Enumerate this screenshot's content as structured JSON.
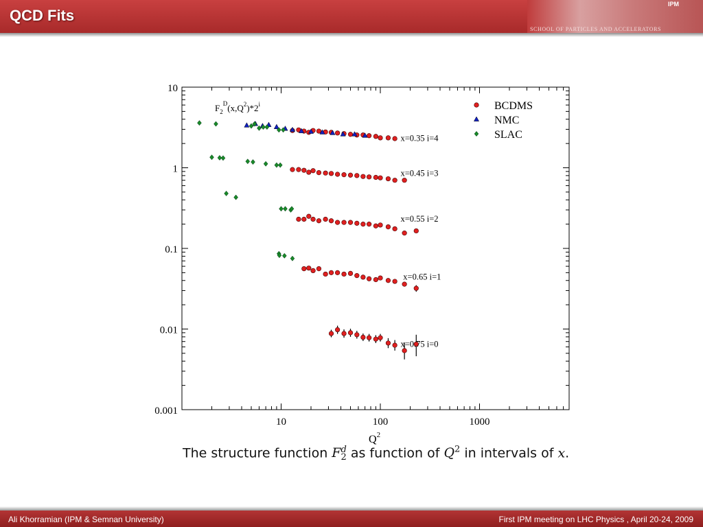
{
  "slide": {
    "title": "QCD Fits",
    "banner_text": "SCHOOL OF PARTICLES AND ACCELERATORS",
    "banner_logo": "IPM",
    "footer_left": "Ali Khorramian (IPM & Semnan University)",
    "footer_right": "First IPM meeting on LHC Physics , April 20-24, 2009"
  },
  "caption": {
    "prefix": "The structure function ",
    "symbol": "F",
    "sup": "d",
    "sub": "2",
    "middle": " as function of ",
    "q": "Q",
    "qsup": "2",
    "suffix": " in intervals of ",
    "x": "x",
    "end": "."
  },
  "chart_data": {
    "type": "scatter",
    "xscale": "log",
    "yscale": "log",
    "xlim": [
      1,
      8000
    ],
    "ylim": [
      0.001,
      10
    ],
    "xlabel": "Q",
    "xlabel_sup": "2",
    "ylabel": "F2D(x,Q2)*2i",
    "ylabel_parts": {
      "base": "F",
      "sub": "2",
      "sup": "D",
      "mid1": "(x,Q",
      "sup2": "2",
      "mid2": ")*2",
      "sup3": "i"
    },
    "xticks": [
      10,
      100,
      1000
    ],
    "xtick_labels": [
      "10",
      "100",
      "1000"
    ],
    "yticks": [
      0.001,
      0.01,
      0.1,
      1,
      10
    ],
    "ytick_labels": [
      "0.001",
      "0.01",
      "0.1",
      "1",
      "10"
    ],
    "legend_position": "top-right",
    "legend": [
      {
        "name": "BCDMS",
        "marker": "circle",
        "color": "#e02020"
      },
      {
        "name": "NMC",
        "marker": "triangle",
        "color": "#1020c0"
      },
      {
        "name": "SLAC",
        "marker": "diamond",
        "color": "#1a8a2a"
      }
    ],
    "annotations": [
      {
        "text": "x=0.35 i=4",
        "x": 160,
        "y": 2.15
      },
      {
        "text": "x=0.45 i=3",
        "x": 160,
        "y": 0.79
      },
      {
        "text": "x=0.55 i=2",
        "x": 160,
        "y": 0.215
      },
      {
        "text": "x=0.65 i=1",
        "x": 170,
        "y": 0.041
      },
      {
        "text": "x=0.75 i=0",
        "x": 160,
        "y": 0.006
      }
    ],
    "series": [
      {
        "name": "BCDMS",
        "marker": "circle",
        "color": "#e02020",
        "points": [
          [
            13,
            2.9
          ],
          [
            15,
            2.95
          ],
          [
            17,
            2.85
          ],
          [
            19,
            2.75
          ],
          [
            21,
            2.9
          ],
          [
            24,
            2.85
          ],
          [
            28,
            2.78
          ],
          [
            32,
            2.75
          ],
          [
            37,
            2.7
          ],
          [
            43,
            2.65
          ],
          [
            50,
            2.6
          ],
          [
            58,
            2.55
          ],
          [
            67,
            2.55
          ],
          [
            77,
            2.5
          ],
          [
            90,
            2.45
          ],
          [
            100,
            2.35
          ],
          [
            120,
            2.35
          ],
          [
            140,
            2.3
          ],
          [
            13,
            0.95
          ],
          [
            15,
            0.95
          ],
          [
            17,
            0.93
          ],
          [
            19,
            0.88
          ],
          [
            21,
            0.92
          ],
          [
            24,
            0.87
          ],
          [
            28,
            0.86
          ],
          [
            32,
            0.85
          ],
          [
            37,
            0.83
          ],
          [
            43,
            0.82
          ],
          [
            50,
            0.81
          ],
          [
            58,
            0.8
          ],
          [
            67,
            0.78
          ],
          [
            77,
            0.77
          ],
          [
            90,
            0.76
          ],
          [
            100,
            0.75
          ],
          [
            120,
            0.73
          ],
          [
            140,
            0.7
          ],
          [
            175,
            0.7
          ],
          [
            15,
            0.23
          ],
          [
            17,
            0.23
          ],
          [
            19,
            0.25
          ],
          [
            21,
            0.23
          ],
          [
            24,
            0.22
          ],
          [
            28,
            0.23
          ],
          [
            32,
            0.22
          ],
          [
            37,
            0.21
          ],
          [
            43,
            0.21
          ],
          [
            50,
            0.21
          ],
          [
            58,
            0.205
          ],
          [
            67,
            0.2
          ],
          [
            77,
            0.2
          ],
          [
            90,
            0.19
          ],
          [
            100,
            0.195
          ],
          [
            120,
            0.185
          ],
          [
            140,
            0.175
          ],
          [
            175,
            0.155
          ],
          [
            230,
            0.165
          ],
          [
            17,
            0.056
          ],
          [
            19,
            0.057
          ],
          [
            21,
            0.053
          ],
          [
            24,
            0.056
          ],
          [
            28,
            0.048
          ],
          [
            32,
            0.05
          ],
          [
            37,
            0.05
          ],
          [
            43,
            0.048
          ],
          [
            50,
            0.049
          ],
          [
            58,
            0.046
          ],
          [
            67,
            0.044
          ],
          [
            77,
            0.042
          ],
          [
            90,
            0.041
          ],
          [
            100,
            0.043
          ],
          [
            120,
            0.04
          ],
          [
            140,
            0.039
          ],
          [
            175,
            0.036
          ],
          [
            230,
            0.032
          ],
          [
            32,
            0.0088
          ],
          [
            37,
            0.0098
          ],
          [
            43,
            0.0088
          ],
          [
            50,
            0.009
          ],
          [
            58,
            0.0085
          ],
          [
            67,
            0.0079
          ],
          [
            77,
            0.0078
          ],
          [
            90,
            0.0075
          ],
          [
            100,
            0.0078
          ],
          [
            120,
            0.0067
          ],
          [
            140,
            0.0063
          ],
          [
            175,
            0.0054
          ],
          [
            230,
            0.0065
          ]
        ]
      },
      {
        "name": "NMC",
        "marker": "triangle",
        "color": "#1020c0",
        "points": [
          [
            4.5,
            3.35
          ],
          [
            5.5,
            3.5
          ],
          [
            6.5,
            3.3
          ],
          [
            7.5,
            3.4
          ],
          [
            9,
            3.2
          ],
          [
            11,
            3.05
          ],
          [
            13,
            2.95
          ],
          [
            16,
            2.85
          ],
          [
            20,
            2.8
          ],
          [
            26,
            2.75
          ],
          [
            33,
            2.7
          ],
          [
            42,
            2.6
          ],
          [
            55,
            2.6
          ],
          [
            70,
            2.5
          ]
        ]
      },
      {
        "name": "SLAC",
        "marker": "diamond",
        "color": "#1a8a2a",
        "points": [
          [
            1.5,
            3.6
          ],
          [
            2.2,
            3.5
          ],
          [
            5,
            3.3
          ],
          [
            5.4,
            3.5
          ],
          [
            6,
            3.1
          ],
          [
            6.6,
            3.2
          ],
          [
            7.2,
            3.2
          ],
          [
            9.5,
            2.95
          ],
          [
            10.5,
            2.95
          ],
          [
            2,
            1.35
          ],
          [
            2.4,
            1.33
          ],
          [
            2.6,
            1.32
          ],
          [
            4.6,
            1.2
          ],
          [
            5.2,
            1.18
          ],
          [
            7,
            1.12
          ],
          [
            9,
            1.08
          ],
          [
            9.8,
            1.08
          ],
          [
            2.8,
            0.48
          ],
          [
            3.5,
            0.43
          ],
          [
            10,
            0.31
          ],
          [
            11,
            0.31
          ],
          [
            12.5,
            0.3
          ],
          [
            12.8,
            0.31
          ],
          [
            9.5,
            0.086
          ],
          [
            9.6,
            0.082
          ],
          [
            10.8,
            0.081
          ],
          [
            13,
            0.075
          ]
        ]
      }
    ],
    "error_bars": [
      {
        "x": 32,
        "y": 0.0088,
        "lo": 0.0079,
        "hi": 0.0098
      },
      {
        "x": 37,
        "y": 0.0098,
        "lo": 0.0087,
        "hi": 0.011
      },
      {
        "x": 43,
        "y": 0.0088,
        "lo": 0.0078,
        "hi": 0.0099
      },
      {
        "x": 50,
        "y": 0.009,
        "lo": 0.008,
        "hi": 0.0101
      },
      {
        "x": 58,
        "y": 0.0085,
        "lo": 0.0076,
        "hi": 0.0095
      },
      {
        "x": 67,
        "y": 0.0079,
        "lo": 0.0071,
        "hi": 0.0088
      },
      {
        "x": 77,
        "y": 0.0078,
        "lo": 0.007,
        "hi": 0.0087
      },
      {
        "x": 90,
        "y": 0.0075,
        "lo": 0.0067,
        "hi": 0.0084
      },
      {
        "x": 100,
        "y": 0.0078,
        "lo": 0.007,
        "hi": 0.0087
      },
      {
        "x": 120,
        "y": 0.0067,
        "lo": 0.0058,
        "hi": 0.0077
      },
      {
        "x": 140,
        "y": 0.0063,
        "lo": 0.0054,
        "hi": 0.0073
      },
      {
        "x": 175,
        "y": 0.0054,
        "lo": 0.0042,
        "hi": 0.0068
      },
      {
        "x": 230,
        "y": 0.0065,
        "lo": 0.0046,
        "hi": 0.0085
      },
      {
        "x": 230,
        "y": 0.032,
        "lo": 0.029,
        "hi": 0.035
      }
    ]
  }
}
